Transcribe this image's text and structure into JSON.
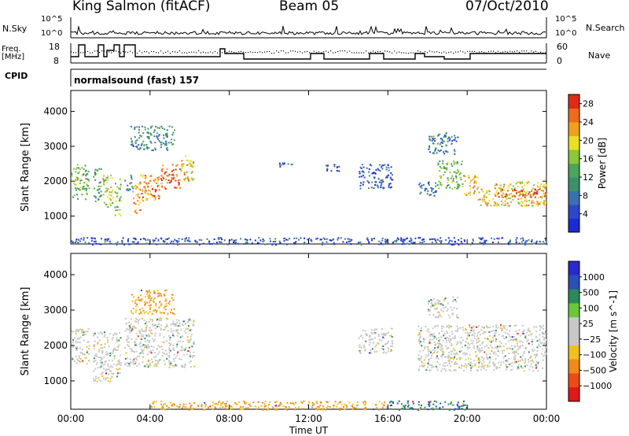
{
  "header": {
    "station": "King Salmon (fitACF)",
    "beam": "Beam 05",
    "date": "07/Oct/2010"
  },
  "panel_labels": {
    "nsky": "N.Sky",
    "nsearch": "N.Search",
    "freq_line1": "Freq.",
    "freq_line2": "[MHz]",
    "nave": "Nave",
    "cpid": "CPID",
    "cpid_value": "normalsound (fast) 157",
    "noise_ticks_left": [
      "10^5",
      "10^0"
    ],
    "noise_ticks_right": [
      "10^5",
      "10^0"
    ],
    "freq_ticks": [
      "18",
      "8"
    ],
    "nave_ticks": [
      "60",
      "0"
    ]
  },
  "colors": {
    "power_scale": [
      "#1a2ad6",
      "#2e46c8",
      "#3a70b0",
      "#3e8f6c",
      "#4ca55a",
      "#8cc63a",
      "#e8e020",
      "#f0a020",
      "#ee6a1c",
      "#e02a18"
    ],
    "velocity_scale": [
      "#2a2ad0",
      "#2a50b8",
      "#2a8a5a",
      "#6ac83a",
      "#c8c8c8",
      "#c8c8c8",
      "#f0c020",
      "#f08a1a",
      "#ee4a18",
      "#e01818"
    ]
  },
  "chart_data": [
    {
      "type": "heatmap",
      "title": "",
      "xlabel": "Time UT",
      "ylabel": "Slant Range [km]",
      "x_ticks": [
        "00:00",
        "04:00",
        "08:00",
        "12:00",
        "16:00",
        "20:00",
        "00:00"
      ],
      "xlim_hours": [
        0,
        24
      ],
      "ylim": [
        200,
        4600
      ],
      "y_ticks": [
        1000,
        2000,
        3000,
        4000
      ],
      "colorbar": {
        "label": "Power [dB]",
        "ticks": [
          4,
          8,
          12,
          16,
          20,
          24,
          28
        ],
        "range": [
          0,
          30
        ]
      },
      "echo_regions": [
        {
          "t": [
            0.0,
            0.9
          ],
          "r": [
            1500,
            2500
          ],
          "value": 14
        },
        {
          "t": [
            1.1,
            1.5
          ],
          "r": [
            1400,
            2400
          ],
          "value": 12
        },
        {
          "t": [
            1.6,
            2.1
          ],
          "r": [
            1200,
            2200
          ],
          "value": 18
        },
        {
          "t": [
            2.2,
            2.5
          ],
          "r": [
            1000,
            2100
          ],
          "value": 16
        },
        {
          "t": [
            2.7,
            3.1
          ],
          "r": [
            1700,
            2200
          ],
          "value": 10
        },
        {
          "t": [
            3.1,
            3.5
          ],
          "r": [
            1100,
            2000
          ],
          "value": 22
        },
        {
          "t": [
            3.5,
            4.5
          ],
          "r": [
            1400,
            2200
          ],
          "value": 24
        },
        {
          "t": [
            4.5,
            5.5
          ],
          "r": [
            1800,
            2500
          ],
          "value": 26
        },
        {
          "t": [
            5.5,
            6.2
          ],
          "r": [
            2000,
            2800
          ],
          "value": 22
        },
        {
          "t": [
            3.0,
            5.2
          ],
          "r": [
            2900,
            3600
          ],
          "value": 10
        },
        {
          "t": [
            10.4,
            11.2
          ],
          "r": [
            2400,
            2550
          ],
          "value": 6
        },
        {
          "t": [
            12.8,
            13.6
          ],
          "r": [
            2300,
            2500
          ],
          "value": 6
        },
        {
          "t": [
            14.5,
            16.2
          ],
          "r": [
            1800,
            2500
          ],
          "value": 6
        },
        {
          "t": [
            17.5,
            18.5
          ],
          "r": [
            1600,
            2000
          ],
          "value": 8
        },
        {
          "t": [
            18.5,
            19.8
          ],
          "r": [
            1800,
            2600
          ],
          "value": 14
        },
        {
          "t": [
            19.8,
            20.5
          ],
          "r": [
            1600,
            2200
          ],
          "value": 22
        },
        {
          "t": [
            20.5,
            24.0
          ],
          "r": [
            1300,
            2000
          ],
          "value": 20
        },
        {
          "t": [
            21.5,
            24.0
          ],
          "r": [
            1550,
            1800
          ],
          "value": 28
        },
        {
          "t": [
            18.0,
            19.5
          ],
          "r": [
            2800,
            3400
          ],
          "value": 8
        },
        {
          "t": [
            0.0,
            24.0
          ],
          "r": [
            200,
            400
          ],
          "value": 5
        }
      ]
    },
    {
      "type": "heatmap",
      "title": "",
      "xlabel": "Time UT",
      "ylabel": "Slant Range [km]",
      "x_ticks": [
        "00:00",
        "04:00",
        "08:00",
        "12:00",
        "16:00",
        "20:00",
        "00:00"
      ],
      "xlim_hours": [
        0,
        24
      ],
      "ylim": [
        200,
        4600
      ],
      "y_ticks": [
        1000,
        2000,
        3000,
        4000
      ],
      "colorbar": {
        "label": "Velocity [m s^-1]",
        "ticks": [
          "1000",
          "500",
          "100",
          "25",
          "−25",
          "−100",
          "−500",
          "−1000"
        ]
      },
      "echo_regions": [
        {
          "t": [
            0.0,
            0.9
          ],
          "r": [
            1500,
            2500
          ],
          "value": 0
        },
        {
          "t": [
            1.1,
            2.5
          ],
          "r": [
            1000,
            2400
          ],
          "value": 0
        },
        {
          "t": [
            2.7,
            6.2
          ],
          "r": [
            1400,
            2800
          ],
          "value": 0
        },
        {
          "t": [
            3.0,
            5.2
          ],
          "r": [
            2900,
            3600
          ],
          "value": -100
        },
        {
          "t": [
            14.5,
            16.2
          ],
          "r": [
            1800,
            2500
          ],
          "value": 0
        },
        {
          "t": [
            17.5,
            24.0
          ],
          "r": [
            1300,
            2600
          ],
          "value": 0
        },
        {
          "t": [
            18.0,
            19.5
          ],
          "r": [
            2800,
            3400
          ],
          "value": 0
        },
        {
          "t": [
            4.0,
            16.0
          ],
          "r": [
            200,
            450
          ],
          "value": -100
        },
        {
          "t": [
            16.0,
            20.0
          ],
          "r": [
            200,
            450
          ],
          "value": 100
        }
      ]
    }
  ]
}
